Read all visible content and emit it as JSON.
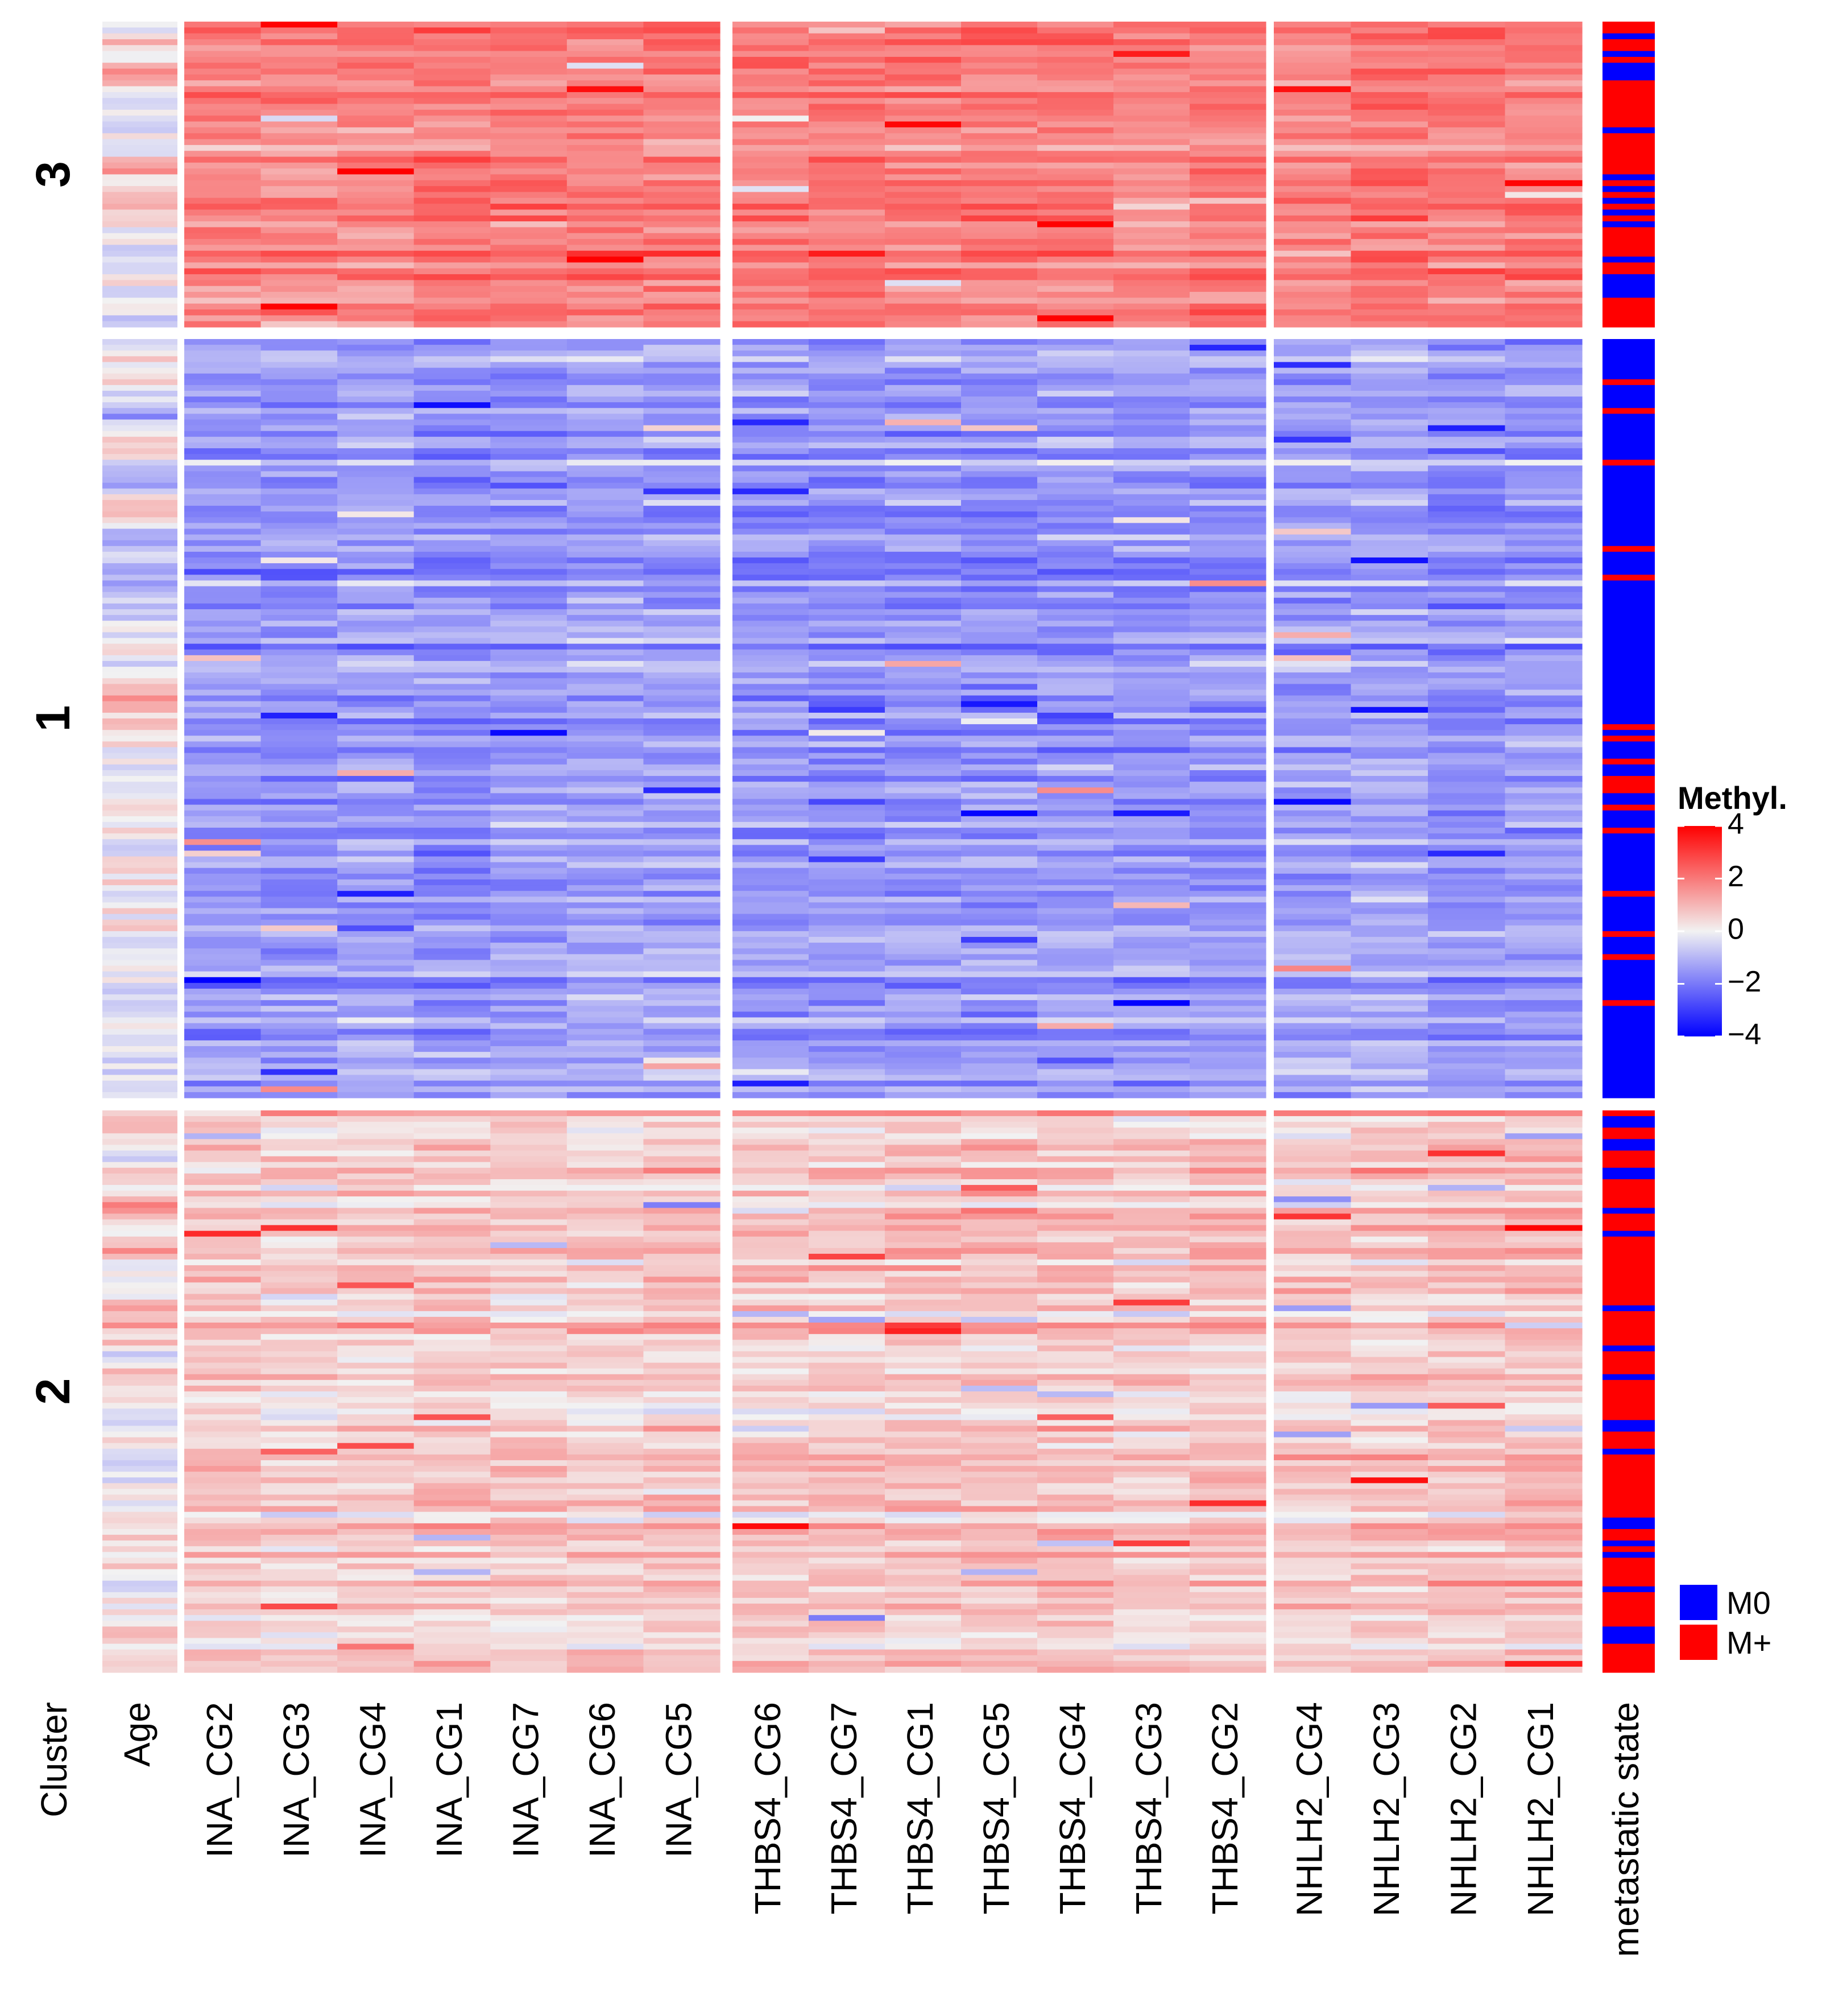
{
  "chart_data": {
    "type": "heatmap",
    "title": "",
    "xlabel": "",
    "ylabel": "",
    "row_annotation_title": "Cluster",
    "clusters": [
      {
        "label": "3",
        "rows": 52,
        "pattern": "high",
        "age_pattern": "mid",
        "m_plus_fraction": 0.72
      },
      {
        "label": "1",
        "rows": 132,
        "pattern": "low",
        "age_pattern": "mixed",
        "m_plus_fraction": 0.15
      },
      {
        "label": "2",
        "rows": 98,
        "pattern": "moderate",
        "age_pattern": "mid",
        "m_plus_fraction": 0.78
      }
    ],
    "age_column": {
      "label": "Age"
    },
    "gene_groups": [
      {
        "gene": "INA",
        "columns": [
          "INA_CG2",
          "INA_CG3",
          "INA_CG4",
          "INA_CG1",
          "INA_CG7",
          "INA_CG6",
          "INA_CG5"
        ]
      },
      {
        "gene": "THBS4",
        "columns": [
          "THBS4_CG6",
          "THBS4_CG7",
          "THBS4_CG1",
          "THBS4_CG5",
          "THBS4_CG4",
          "THBS4_CG3",
          "THBS4_CG2"
        ]
      },
      {
        "gene": "NHLH2",
        "columns": [
          "NHLH2_CG4",
          "NHLH2_CG3",
          "NHLH2_CG2",
          "NHLH2_CG1"
        ]
      }
    ],
    "metastatic_column": {
      "label": "metastatic state"
    },
    "color_scale": {
      "title": "Methyl.",
      "min": -4,
      "max": 4,
      "ticks": [
        {
          "value": 4,
          "label": "4"
        },
        {
          "value": 2,
          "label": "2"
        },
        {
          "value": 0,
          "label": "0"
        },
        {
          "value": -2,
          "label": "−2"
        },
        {
          "value": -4,
          "label": "−4"
        }
      ],
      "colors": {
        "low": "#0000ff",
        "mid": "#f2f2f2",
        "high": "#ff0000"
      }
    },
    "legend_metastatic": [
      {
        "label": "M0",
        "color": "#0000ff"
      },
      {
        "label": "M+",
        "color": "#ff0000"
      }
    ]
  }
}
